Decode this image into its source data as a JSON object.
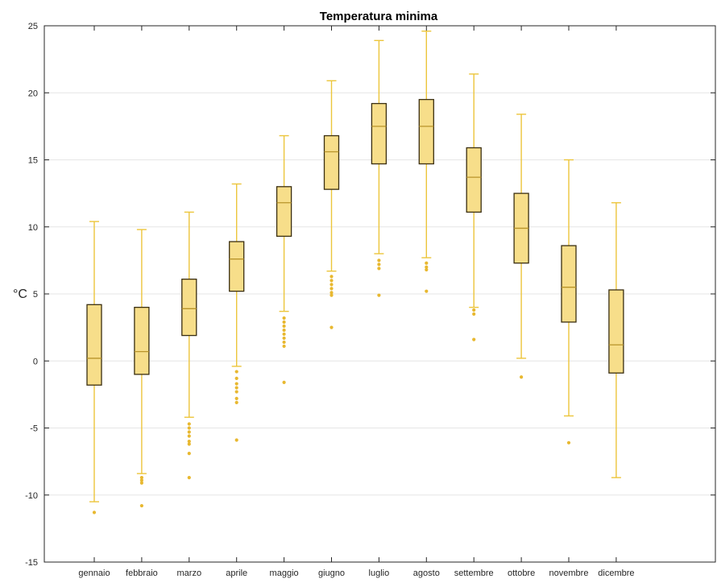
{
  "chart_data": {
    "type": "boxplot",
    "title": "Temperatura minima",
    "xlabel": "",
    "ylabel": "°C",
    "ylim": [
      -15,
      25
    ],
    "yticks": [
      -15,
      -10,
      -5,
      0,
      5,
      10,
      15,
      20,
      25
    ],
    "grid": "horizontal",
    "colors": {
      "box_fill": "#f7de8a",
      "box_edge": "#3a2e10",
      "whisker": "#ecc53b",
      "outlier": "#e8b830",
      "grid": "#e6e6e6",
      "axis": "#262626"
    },
    "categories": [
      "gennaio",
      "febbraio",
      "marzo",
      "aprile",
      "maggio",
      "giugno",
      "luglio",
      "agosto",
      "settembre",
      "ottobre",
      "novembre",
      "dicembre"
    ],
    "boxes": [
      {
        "category": "gennaio",
        "whisker_low": -10.5,
        "q1": -1.8,
        "median": 0.2,
        "q3": 4.2,
        "whisker_high": 10.4,
        "outliers": [
          -11.3
        ]
      },
      {
        "category": "febbraio",
        "whisker_low": -8.4,
        "q1": -1.0,
        "median": 0.7,
        "q3": 4.0,
        "whisker_high": 9.8,
        "outliers": [
          -8.7,
          -8.9,
          -9.1,
          -10.8
        ]
      },
      {
        "category": "marzo",
        "whisker_low": -4.2,
        "q1": 1.9,
        "median": 3.9,
        "q3": 6.1,
        "whisker_high": 11.1,
        "outliers": [
          -4.7,
          -5.0,
          -5.3,
          -5.6,
          -6.0,
          -6.2,
          -6.9,
          -8.7
        ]
      },
      {
        "category": "aprile",
        "whisker_low": -0.4,
        "q1": 5.2,
        "median": 7.6,
        "q3": 8.9,
        "whisker_high": 13.2,
        "outliers": [
          -0.8,
          -1.3,
          -1.7,
          -2.0,
          -2.3,
          -2.8,
          -3.1,
          -5.9
        ]
      },
      {
        "category": "maggio",
        "whisker_low": 3.7,
        "q1": 9.3,
        "median": 11.8,
        "q3": 13.0,
        "whisker_high": 16.8,
        "outliers": [
          3.2,
          2.9,
          2.6,
          2.3,
          2.0,
          1.7,
          1.4,
          1.1,
          -1.6
        ]
      },
      {
        "category": "giugno",
        "whisker_low": 6.7,
        "q1": 12.8,
        "median": 15.6,
        "q3": 16.8,
        "whisker_high": 20.9,
        "outliers": [
          6.3,
          6.0,
          5.7,
          5.4,
          5.1,
          4.9,
          2.5
        ]
      },
      {
        "category": "luglio",
        "whisker_low": 8.0,
        "q1": 14.7,
        "median": 17.5,
        "q3": 19.2,
        "whisker_high": 23.9,
        "outliers": [
          7.5,
          7.2,
          6.9,
          4.9
        ]
      },
      {
        "category": "agosto",
        "whisker_low": 7.7,
        "q1": 14.7,
        "median": 17.5,
        "q3": 19.5,
        "whisker_high": 24.6,
        "outliers": [
          7.3,
          7.0,
          6.8,
          5.2
        ]
      },
      {
        "category": "settembre",
        "whisker_low": 4.0,
        "q1": 11.1,
        "median": 13.7,
        "q3": 15.9,
        "whisker_high": 21.4,
        "outliers": [
          3.8,
          3.5,
          1.6
        ]
      },
      {
        "category": "ottobre",
        "whisker_low": 0.2,
        "q1": 7.3,
        "median": 9.9,
        "q3": 12.5,
        "whisker_high": 18.4,
        "outliers": [
          -1.2
        ]
      },
      {
        "category": "novembre",
        "whisker_low": -4.1,
        "q1": 2.9,
        "median": 5.5,
        "q3": 8.6,
        "whisker_high": 15.0,
        "outliers": [
          -6.1
        ]
      },
      {
        "category": "dicembre",
        "whisker_low": -8.7,
        "q1": -0.9,
        "median": 1.2,
        "q3": 5.3,
        "whisker_high": 11.8,
        "outliers": []
      }
    ]
  }
}
